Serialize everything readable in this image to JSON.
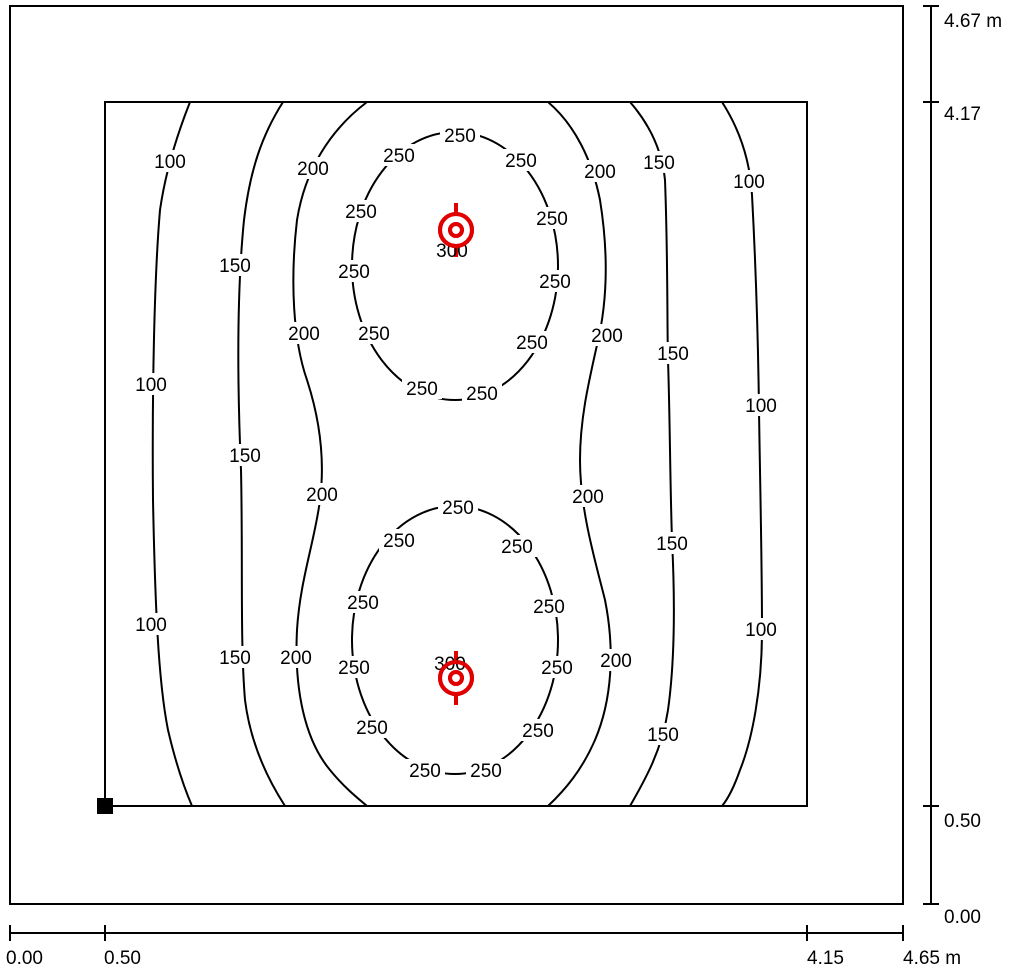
{
  "units": "m",
  "colors": {
    "line": "#000000",
    "luminaire": "#e00000",
    "background": "#ffffff"
  },
  "icons": {
    "luminaire": "luminaire-symbol",
    "origin_marker": "origin-square-marker"
  },
  "x_axis_ticks": [
    "0.00",
    "0.50",
    "4.15",
    "4.65 m"
  ],
  "y_axis_ticks": [
    "4.67 m",
    "4.17",
    "0.50",
    "0.00"
  ],
  "isoline_values": {
    "top_left_100": "100",
    "top_left_150": "150",
    "top_left_200": "200",
    "top_right_200": "200",
    "top_right_150": "150",
    "top_right_100": "100",
    "mid_left_100": "100",
    "mid_left_150": "150",
    "mid_left_200": "200",
    "mid_right_200": "200",
    "mid_right_150": "150",
    "mid_right_100": "100",
    "low_left_100": "100",
    "low_left_150": "150",
    "low_left_200": "200",
    "low_right_200": "200",
    "low_right_150": "150",
    "low_right_100": "100",
    "upper_ring": [
      "250",
      "250",
      "250",
      "250",
      "250",
      "250",
      "250",
      "250",
      "250",
      "250"
    ],
    "lower_ring": [
      "250",
      "250",
      "250",
      "250",
      "250",
      "250",
      "250",
      "250",
      "250",
      "250"
    ],
    "upper_peak": "300",
    "lower_peak": "300"
  }
}
